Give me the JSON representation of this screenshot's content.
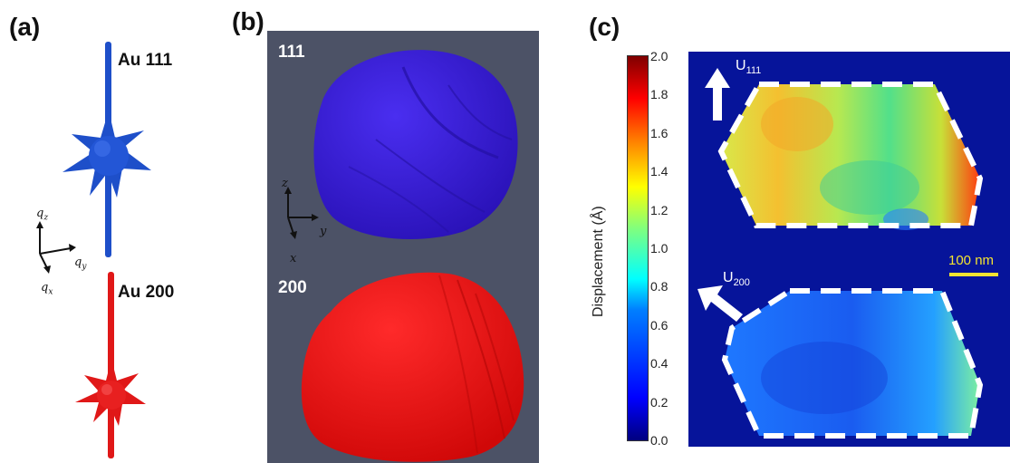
{
  "panels": {
    "a": {
      "label": "(a)",
      "peak_top": "Au 111",
      "peak_bottom": "Au 200",
      "axes": {
        "z": "q",
        "z_sub": "z",
        "y": "q",
        "y_sub": "y",
        "x": "q",
        "x_sub": "x"
      },
      "colors": {
        "top": "#1e4fc9",
        "bottom": "#e01818"
      }
    },
    "b": {
      "label": "(b)",
      "top_label": "111",
      "bottom_label": "200",
      "axes": {
        "z": "z",
        "y": "y",
        "x": "x"
      },
      "colors": {
        "background": "#4c5266",
        "top": "#3b1cd6",
        "bottom": "#f21010"
      }
    },
    "c": {
      "label": "(c)",
      "colorbar_title": "Displacement (Å)",
      "colorbar_ticks": [
        "2.0",
        "1.8",
        "1.6",
        "1.4",
        "1.2",
        "1.0",
        "0.8",
        "0.6",
        "0.4",
        "0.2",
        "0.0"
      ],
      "colorbar_range": [
        0.0,
        2.0
      ],
      "u_top": "U",
      "u_top_sub": "111",
      "u_bottom": "U",
      "u_bottom_sub": "200",
      "scale_bar": "100 nm",
      "colors": {
        "background": "#06149a",
        "dash": "#ffffff",
        "scale": "#f4e430"
      }
    }
  }
}
